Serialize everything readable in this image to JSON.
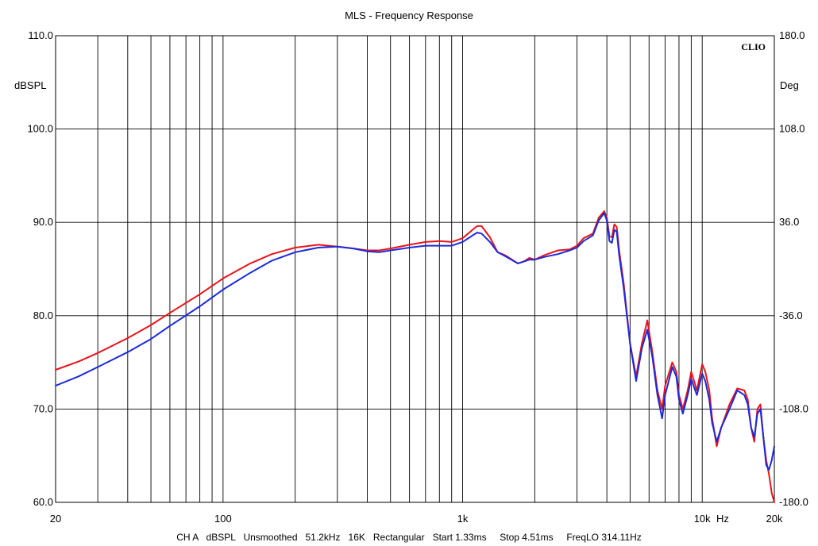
{
  "chart_data": {
    "type": "line",
    "title": "MLS - Frequency Response",
    "brand": "CLIO",
    "ylabel_left": "dBSPL",
    "ylabel_right": "Deg",
    "x_unit_label": "Hz",
    "x_scale": "log",
    "xlim": [
      20,
      20000
    ],
    "ylim": [
      60,
      110
    ],
    "ylim_right": [
      -180,
      180
    ],
    "grid": true,
    "x_ticks": [
      {
        "value": 20,
        "label": "20"
      },
      {
        "value": 100,
        "label": "100"
      },
      {
        "value": 1000,
        "label": "1k"
      },
      {
        "value": 10000,
        "label": "10k"
      },
      {
        "value": 20000,
        "label": "20k"
      }
    ],
    "y_ticks_left": [
      "60.0",
      "70.0",
      "80.0",
      "90.0",
      "100.0",
      "110.0"
    ],
    "y_ticks_right": [
      "-180.0",
      "-108.0",
      "-36.0",
      "36.0",
      "108.0",
      "180.0"
    ],
    "footer": "CH A   dBSPL   Unsmoothed   51.2kHz   16K   Rectangular   Start 1.33ms     Stop 4.51ms     FreqLO 314.11Hz",
    "series": [
      {
        "color": "#e8141c",
        "x": [
          20,
          25,
          30,
          40,
          50,
          60,
          80,
          100,
          130,
          160,
          200,
          250,
          300,
          350,
          400,
          450,
          500,
          600,
          700,
          800,
          900,
          1000,
          1100,
          1150,
          1200,
          1300,
          1400,
          1500,
          1700,
          1800,
          1900,
          2000,
          2200,
          2500,
          2800,
          3000,
          3200,
          3500,
          3700,
          3900,
          4000,
          4100,
          4200,
          4300,
          4400,
          4500,
          4700,
          5000,
          5300,
          5600,
          5900,
          6200,
          6500,
          6800,
          7000,
          7500,
          7800,
          8000,
          8300,
          8700,
          9000,
          9500,
          10000,
          10300,
          10700,
          11000,
          11500,
          12000,
          13000,
          14000,
          15000,
          15500,
          16000,
          16500,
          17000,
          17500,
          18000,
          18500,
          19000,
          19500,
          20000
        ],
        "y": [
          74.2,
          75.1,
          76.0,
          77.6,
          79.0,
          80.3,
          82.3,
          84.0,
          85.6,
          86.6,
          87.3,
          87.6,
          87.4,
          87.2,
          87.0,
          87.0,
          87.2,
          87.6,
          87.9,
          88.0,
          87.9,
          88.3,
          89.2,
          89.6,
          89.6,
          88.4,
          86.8,
          86.5,
          85.6,
          85.8,
          86.2,
          86.0,
          86.5,
          87.0,
          87.1,
          87.5,
          88.3,
          88.8,
          90.5,
          91.2,
          90.5,
          88.5,
          88.4,
          89.8,
          89.5,
          87.0,
          83.5,
          77.0,
          73.5,
          77.0,
          79.5,
          76.0,
          72.0,
          70.0,
          72.5,
          75.0,
          74.0,
          71.5,
          70.0,
          72.0,
          74.0,
          72.0,
          74.8,
          74.0,
          72.0,
          69.0,
          66.0,
          68.0,
          70.5,
          72.2,
          72.0,
          71.0,
          68.0,
          66.5,
          70.0,
          70.5,
          67.0,
          64.5,
          63.0,
          61.0,
          60.0
        ]
      },
      {
        "color": "#1c2ad8",
        "x": [
          20,
          25,
          30,
          40,
          50,
          60,
          80,
          100,
          130,
          160,
          200,
          250,
          300,
          350,
          400,
          450,
          500,
          600,
          700,
          800,
          900,
          1000,
          1100,
          1150,
          1200,
          1300,
          1400,
          1500,
          1700,
          1800,
          1900,
          2000,
          2200,
          2500,
          2800,
          3000,
          3200,
          3500,
          3700,
          3900,
          4000,
          4100,
          4200,
          4300,
          4400,
          4500,
          4700,
          5000,
          5300,
          5600,
          5900,
          6200,
          6500,
          6800,
          7000,
          7500,
          7800,
          8000,
          8300,
          8700,
          9000,
          9500,
          10000,
          10300,
          10700,
          11000,
          11500,
          12000,
          13000,
          14000,
          15000,
          15500,
          16000,
          16500,
          17000,
          17500,
          18000,
          18500,
          19000,
          19500,
          20000
        ],
        "y": [
          72.5,
          73.5,
          74.5,
          76.1,
          77.5,
          78.9,
          81.0,
          82.8,
          84.6,
          85.9,
          86.8,
          87.3,
          87.4,
          87.2,
          86.9,
          86.8,
          87.0,
          87.3,
          87.5,
          87.5,
          87.5,
          87.9,
          88.6,
          88.9,
          88.8,
          87.9,
          86.8,
          86.4,
          85.6,
          85.8,
          86.0,
          86.0,
          86.3,
          86.6,
          87.0,
          87.3,
          88.0,
          88.6,
          90.2,
          91.0,
          90.2,
          88.0,
          87.8,
          89.2,
          89.0,
          86.5,
          83.0,
          77.0,
          73.0,
          76.5,
          78.5,
          75.5,
          71.5,
          69.0,
          71.5,
          74.5,
          73.5,
          71.0,
          69.5,
          71.5,
          73.2,
          71.5,
          73.8,
          73.0,
          71.0,
          68.5,
          66.5,
          68.0,
          70.0,
          72.0,
          71.5,
          70.5,
          68.0,
          67.0,
          69.5,
          70.0,
          67.0,
          64.0,
          63.5,
          64.5,
          66.0
        ]
      }
    ]
  }
}
